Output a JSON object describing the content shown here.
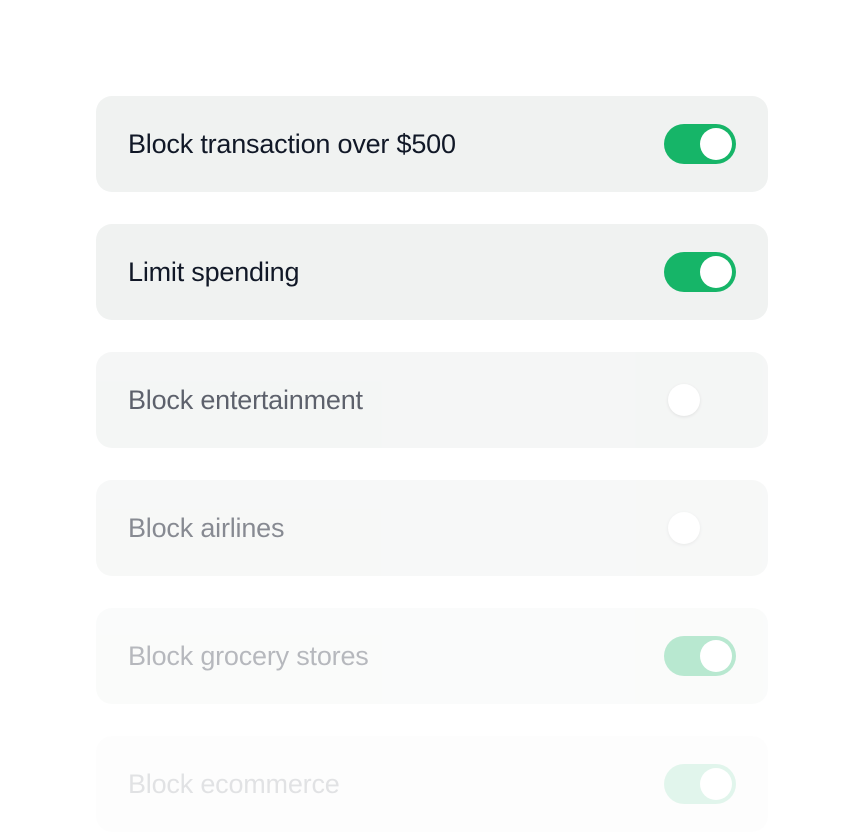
{
  "accent_color": "#16b568",
  "settings": [
    {
      "label": "Block transaction over $500",
      "enabled": true
    },
    {
      "label": "Limit spending",
      "enabled": true
    },
    {
      "label": "Block entertainment",
      "enabled": false
    },
    {
      "label": "Block airlines",
      "enabled": false
    },
    {
      "label": "Block grocery stores",
      "enabled": true
    },
    {
      "label": "Block ecommerce",
      "enabled": true
    }
  ]
}
